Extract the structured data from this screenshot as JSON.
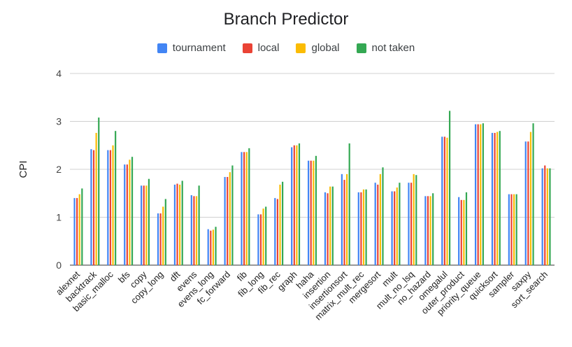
{
  "chart_data": {
    "type": "bar",
    "title": "Branch Predictor",
    "xlabel": "",
    "ylabel": "CPI",
    "ylim": [
      0,
      4
    ],
    "yticks": [
      0,
      1,
      2,
      3,
      4
    ],
    "grid": true,
    "legend_position": "top",
    "categories": [
      "alexnet",
      "backtrack",
      "basic_malloc",
      "bfs",
      "copy",
      "copy_long",
      "dft",
      "evens",
      "evens_long",
      "fc_forward",
      "fib",
      "fib_long",
      "fib_rec",
      "graph",
      "haha",
      "insertion",
      "insertionsort",
      "matrix_mult_rec",
      "mergesort",
      "mult",
      "mult_no_lsq",
      "no_hazard",
      "omegalul",
      "outer_product",
      "priority_queue",
      "quicksort",
      "sampler",
      "saxpy",
      "sort_search"
    ],
    "series": [
      {
        "name": "tournament",
        "color": "#4285F4",
        "values": [
          1.4,
          2.42,
          2.4,
          2.1,
          1.66,
          1.08,
          1.68,
          1.46,
          0.75,
          1.84,
          2.36,
          1.06,
          1.4,
          2.46,
          2.18,
          1.52,
          1.9,
          1.52,
          1.72,
          1.54,
          1.72,
          1.44,
          2.68,
          1.42,
          2.94,
          2.76,
          1.48,
          2.58,
          2.02
        ]
      },
      {
        "name": "local",
        "color": "#EA4335",
        "values": [
          1.4,
          2.4,
          2.4,
          2.1,
          1.66,
          1.08,
          1.7,
          1.44,
          0.72,
          1.84,
          2.36,
          1.06,
          1.38,
          2.5,
          2.18,
          1.5,
          1.78,
          1.52,
          1.68,
          1.54,
          1.72,
          1.44,
          2.68,
          1.36,
          2.94,
          2.76,
          1.48,
          2.58,
          2.08
        ]
      },
      {
        "name": "global",
        "color": "#FBBC04",
        "values": [
          1.48,
          2.76,
          2.5,
          2.2,
          1.66,
          1.22,
          1.68,
          1.44,
          0.74,
          1.94,
          2.36,
          1.18,
          1.68,
          2.5,
          2.18,
          1.64,
          1.9,
          1.58,
          1.9,
          1.62,
          1.9,
          1.44,
          2.66,
          1.36,
          2.94,
          2.78,
          1.48,
          2.78,
          2.02
        ]
      },
      {
        "name": "not taken",
        "color": "#34A853",
        "values": [
          1.6,
          3.08,
          2.8,
          2.26,
          1.8,
          1.38,
          1.76,
          1.66,
          0.8,
          2.08,
          2.44,
          1.22,
          1.74,
          2.54,
          2.28,
          1.64,
          2.54,
          1.58,
          2.04,
          1.72,
          1.88,
          1.5,
          3.22,
          1.52,
          2.96,
          2.8,
          1.48,
          2.96,
          2.02
        ]
      }
    ]
  }
}
